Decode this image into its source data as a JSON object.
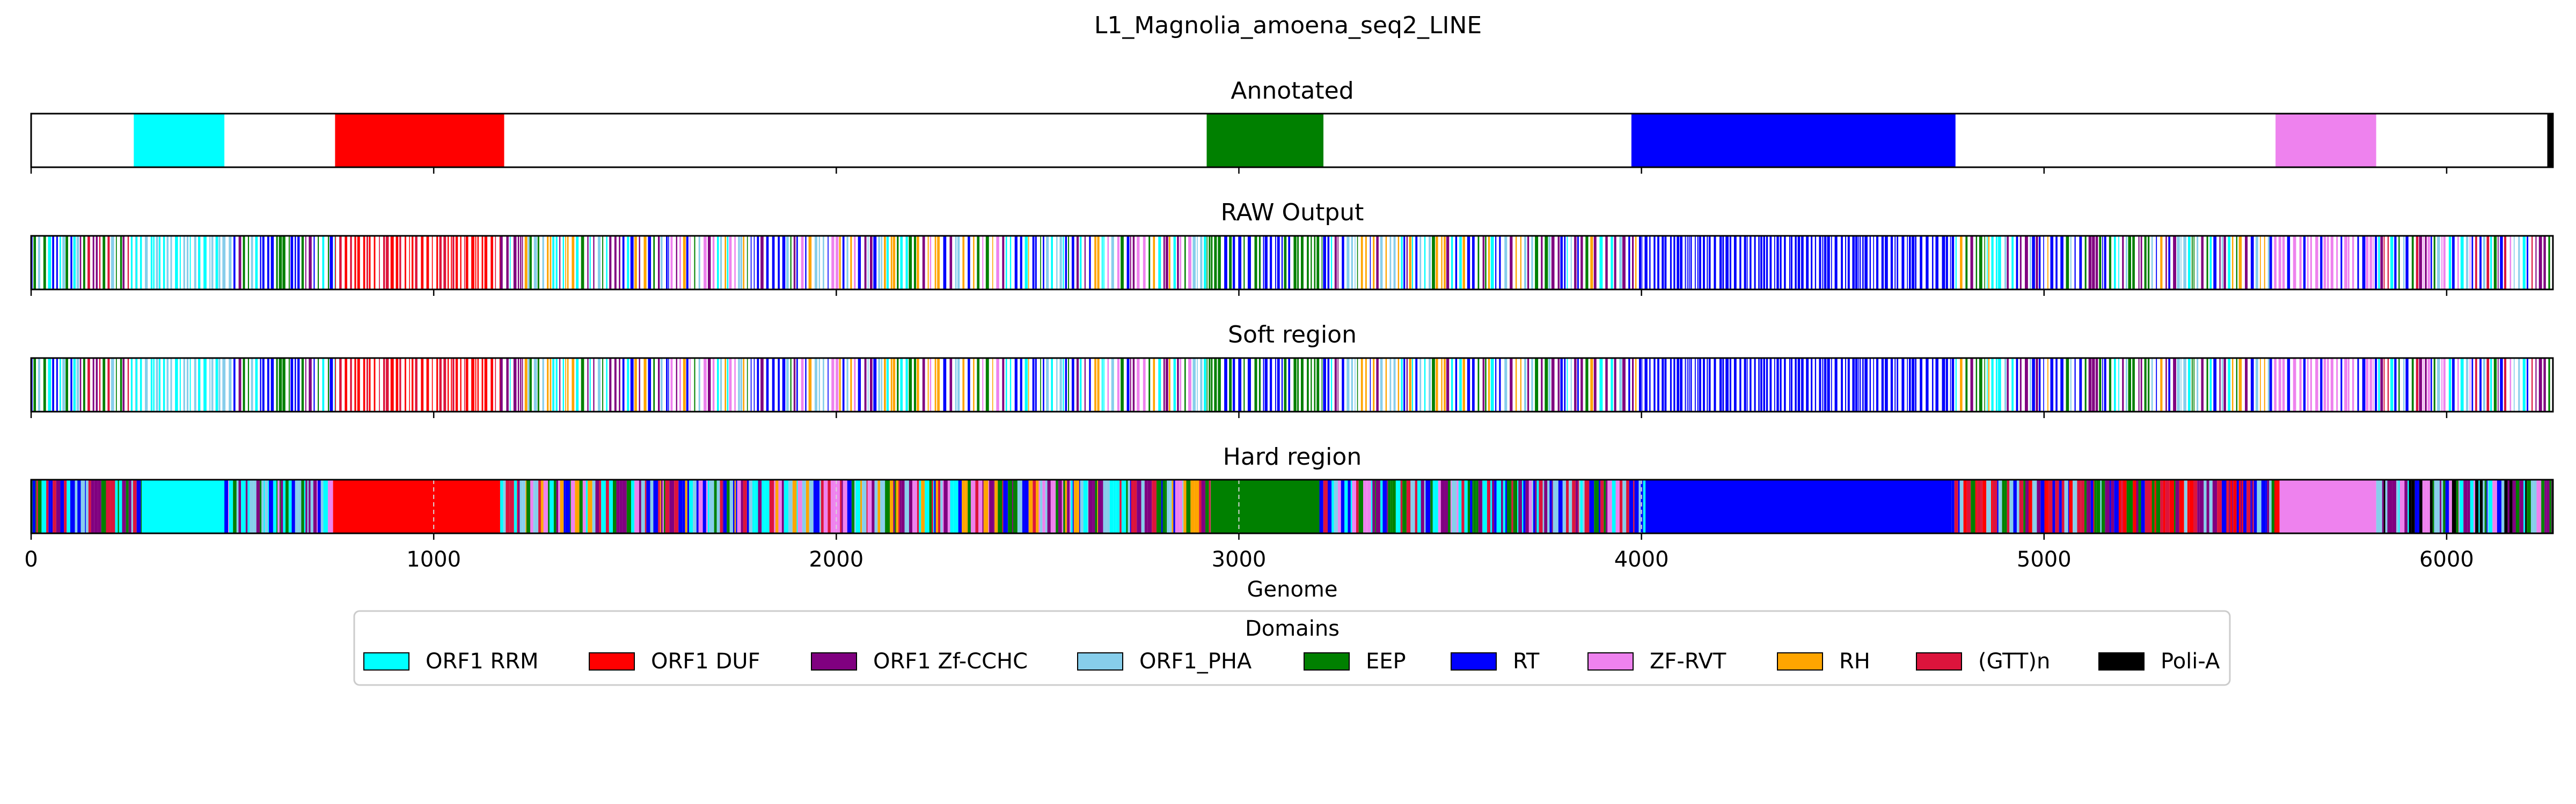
{
  "chart_data": {
    "type": "annotation-tracks",
    "title": "L1_Magnolia_amoena_seq2_LINE",
    "xlabel": "Genome",
    "xlim": [
      0,
      6264
    ],
    "xticks": [
      0,
      1000,
      2000,
      3000,
      4000,
      5000,
      6000
    ],
    "tracks": [
      {
        "title": "Annotated",
        "segments": [
          {
            "domain": "ORF1 RRM",
            "start": 255,
            "end": 480
          },
          {
            "domain": "ORF1 DUF",
            "start": 755,
            "end": 1175
          },
          {
            "domain": "EEP",
            "start": 2920,
            "end": 3210
          },
          {
            "domain": "RT",
            "start": 3975,
            "end": 4780
          },
          {
            "domain": "ZF-RVT",
            "start": 5575,
            "end": 5825
          },
          {
            "domain": "Poli-A",
            "start": 6250,
            "end": 6264
          }
        ]
      },
      {
        "title": "RAW Output",
        "mode": "sparse",
        "regions": [
          {
            "start": 0,
            "end": 260,
            "palette": [
              "RT",
              "ORF1 Zf-CCHC",
              "(GTT)n",
              "ORF1_PHA",
              "EEP",
              "ORF1 RRM"
            ]
          },
          {
            "start": 260,
            "end": 475,
            "palette": [
              "ORF1 RRM",
              "ORF1 RRM",
              "ORF1_PHA"
            ]
          },
          {
            "start": 475,
            "end": 755,
            "palette": [
              "RT",
              "ORF1 Zf-CCHC",
              "ORF1 RRM",
              "ORF1_PHA",
              "EEP"
            ]
          },
          {
            "start": 755,
            "end": 1165,
            "palette": [
              "ORF1 DUF",
              "ORF1 DUF",
              "(GTT)n"
            ]
          },
          {
            "start": 1165,
            "end": 2920,
            "palette": [
              "RT",
              "ORF1 Zf-CCHC",
              "ORF1 RRM",
              "ORF1_PHA",
              "EEP",
              "ZF-RVT",
              "RH"
            ]
          },
          {
            "start": 2920,
            "end": 3220,
            "palette": [
              "EEP",
              "EEP",
              "RT"
            ]
          },
          {
            "start": 3220,
            "end": 4000,
            "palette": [
              "RT",
              "ORF1 Zf-CCHC",
              "ORF1 RRM",
              "ORF1_PHA",
              "EEP",
              "RH"
            ]
          },
          {
            "start": 4000,
            "end": 4780,
            "palette": [
              "RT",
              "RT",
              "RT"
            ]
          },
          {
            "start": 4780,
            "end": 5560,
            "palette": [
              "RT",
              "ORF1 Zf-CCHC",
              "ORF1 RRM",
              "ORF1_PHA",
              "EEP",
              "RH"
            ]
          },
          {
            "start": 5560,
            "end": 5830,
            "palette": [
              "ZF-RVT",
              "ZF-RVT",
              "RT"
            ]
          },
          {
            "start": 5830,
            "end": 6264,
            "palette": [
              "RT",
              "ORF1 Zf-CCHC",
              "ORF1 RRM",
              "ORF1_PHA",
              "EEP",
              "ZF-RVT",
              "(GTT)n"
            ]
          }
        ]
      },
      {
        "title": "Soft region",
        "mode": "sparse",
        "regions": [
          {
            "start": 0,
            "end": 260,
            "palette": [
              "RT",
              "ORF1 Zf-CCHC",
              "(GTT)n",
              "ORF1_PHA",
              "EEP",
              "ORF1 RRM"
            ]
          },
          {
            "start": 260,
            "end": 475,
            "palette": [
              "ORF1 RRM",
              "ORF1 RRM",
              "ORF1_PHA"
            ]
          },
          {
            "start": 475,
            "end": 755,
            "palette": [
              "RT",
              "ORF1 Zf-CCHC",
              "ORF1 RRM",
              "ORF1_PHA",
              "EEP"
            ]
          },
          {
            "start": 755,
            "end": 1165,
            "palette": [
              "ORF1 DUF",
              "ORF1 DUF",
              "(GTT)n"
            ]
          },
          {
            "start": 1165,
            "end": 2920,
            "palette": [
              "RT",
              "ORF1 Zf-CCHC",
              "ORF1 RRM",
              "ORF1_PHA",
              "EEP",
              "ZF-RVT",
              "RH"
            ]
          },
          {
            "start": 2920,
            "end": 3220,
            "palette": [
              "EEP",
              "EEP",
              "RT"
            ]
          },
          {
            "start": 3220,
            "end": 4000,
            "palette": [
              "RT",
              "ORF1 Zf-CCHC",
              "ORF1 RRM",
              "ORF1_PHA",
              "EEP",
              "RH"
            ]
          },
          {
            "start": 4000,
            "end": 4780,
            "palette": [
              "RT",
              "RT",
              "RT"
            ]
          },
          {
            "start": 4780,
            "end": 5560,
            "palette": [
              "RT",
              "ORF1 Zf-CCHC",
              "ORF1 RRM",
              "ORF1_PHA",
              "EEP",
              "RH"
            ]
          },
          {
            "start": 5560,
            "end": 5830,
            "palette": [
              "ZF-RVT",
              "ZF-RVT",
              "RT"
            ]
          },
          {
            "start": 5830,
            "end": 6264,
            "palette": [
              "RT",
              "ORF1 Zf-CCHC",
              "ORF1 RRM",
              "ORF1_PHA",
              "EEP",
              "ZF-RVT",
              "(GTT)n"
            ]
          }
        ]
      },
      {
        "title": "Hard region",
        "mode": "dense",
        "gridlines": [
          1000,
          2000,
          3000,
          4000
        ],
        "regions": [
          {
            "start": 0,
            "end": 275,
            "palette": [
              "RT",
              "ORF1 Zf-CCHC",
              "(GTT)n",
              "ORF1_PHA",
              "EEP",
              "ORF1 RRM"
            ]
          },
          {
            "start": 275,
            "end": 480,
            "palette": [
              "ORF1 RRM"
            ]
          },
          {
            "start": 480,
            "end": 750,
            "palette": [
              "RT",
              "ORF1 Zf-CCHC",
              "ORF1 RRM",
              "ORF1_PHA",
              "EEP",
              "ZF-RVT"
            ]
          },
          {
            "start": 750,
            "end": 1165,
            "palette": [
              "ORF1 DUF"
            ]
          },
          {
            "start": 1165,
            "end": 2930,
            "palette": [
              "RT",
              "ORF1 Zf-CCHC",
              "ORF1 RRM",
              "ORF1_PHA",
              "EEP",
              "ZF-RVT",
              "RH",
              "(GTT)n"
            ]
          },
          {
            "start": 2930,
            "end": 3200,
            "palette": [
              "EEP"
            ]
          },
          {
            "start": 3200,
            "end": 4010,
            "palette": [
              "RT",
              "ORF1 Zf-CCHC",
              "ORF1 RRM",
              "ORF1_PHA",
              "EEP",
              "ZF-RVT",
              "(GTT)n"
            ]
          },
          {
            "start": 4010,
            "end": 4770,
            "palette": [
              "RT"
            ]
          },
          {
            "start": 4770,
            "end": 5585,
            "palette": [
              "RT",
              "ORF1 Zf-CCHC",
              "(GTT)n",
              "ORF1_PHA",
              "EEP",
              "ORF1 DUF"
            ]
          },
          {
            "start": 5585,
            "end": 5825,
            "palette": [
              "ZF-RVT"
            ]
          },
          {
            "start": 5825,
            "end": 6264,
            "palette": [
              "RT",
              "ORF1 Zf-CCHC",
              "ORF1 RRM",
              "ORF1_PHA",
              "EEP",
              "ZF-RVT",
              "Poli-A"
            ]
          }
        ]
      }
    ],
    "legend": {
      "title": "Domains",
      "placement": "bottom-center",
      "entries": [
        {
          "label": "ORF1 RRM",
          "color": "#00ffff"
        },
        {
          "label": "ORF1 DUF",
          "color": "#ff0000"
        },
        {
          "label": "ORF1 Zf-CCHC",
          "color": "#800080"
        },
        {
          "label": "ORF1_PHA",
          "color": "#87ceeb"
        },
        {
          "label": "EEP",
          "color": "#008000"
        },
        {
          "label": "RT",
          "color": "#0000ff"
        },
        {
          "label": "ZF-RVT",
          "color": "#ee82ee"
        },
        {
          "label": "RH",
          "color": "#ffa500"
        },
        {
          "label": "(GTT)n",
          "color": "#dc143c"
        },
        {
          "label": "Poli-A",
          "color": "#000000"
        }
      ]
    }
  }
}
